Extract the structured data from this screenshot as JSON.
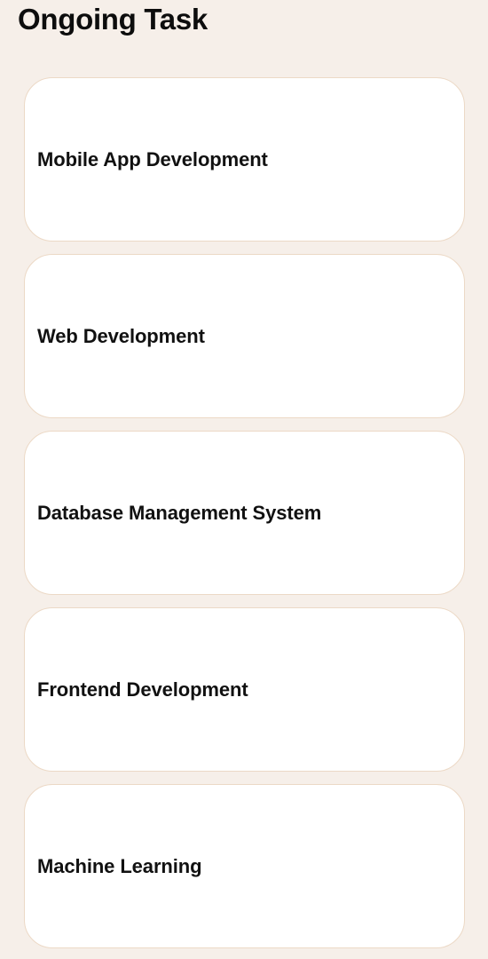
{
  "header": {
    "title": "Ongoing Task"
  },
  "tasks": [
    {
      "label": "Mobile App Development"
    },
    {
      "label": "Web Development"
    },
    {
      "label": "Database Management System"
    },
    {
      "label": "Frontend Development"
    },
    {
      "label": "Machine Learning"
    }
  ],
  "colors": {
    "background": "#f6efe9",
    "card": "#ffffff",
    "card_border": "#ecd9c6",
    "text": "#111111"
  }
}
